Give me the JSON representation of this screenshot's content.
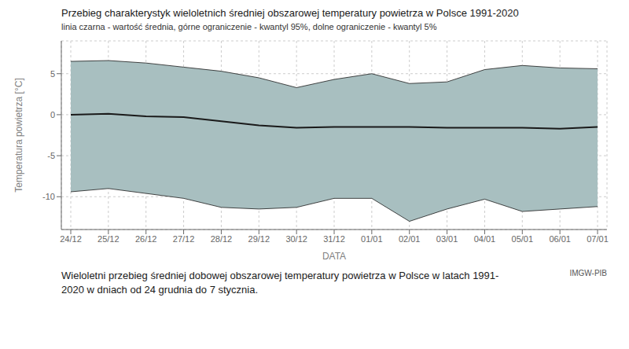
{
  "chart_data": {
    "type": "line",
    "title": "Przebieg charakterystyk wieloletnich średniej obszarowej temperatury powietrza w Polsce 1991-2020",
    "subtitle": "linia czarna - wartość średnia, górne ograniczenie - kwantyl 95%, dolne ograniczenie - kwantyl 5%",
    "xlabel": "DATA",
    "ylabel": "Temperatura powietrza [°C]",
    "caption": [
      "Wieloletni przebieg średniej dobowej obszarowej temperatury powietrza w Polsce w latach 1991-",
      "2020 w dniach od 24 grudnia do 7 stycznia."
    ],
    "watermark": "IMGW-PIB",
    "categories": [
      "24/12",
      "25/12",
      "26/12",
      "27/12",
      "28/12",
      "29/12",
      "30/12",
      "31/12",
      "01/01",
      "02/01",
      "03/01",
      "04/01",
      "05/01",
      "06/01",
      "07/01"
    ],
    "series": [
      {
        "type": "band",
        "color": "#a8bfc0",
        "lower": [
          -9.4,
          -9.0,
          -9.6,
          -10.2,
          -11.3,
          -11.5,
          -11.3,
          -10.2,
          -10.2,
          -13.0,
          -11.5,
          -10.3,
          -11.8,
          -11.5,
          -11.2
        ],
        "upper": [
          6.5,
          6.6,
          6.3,
          5.8,
          5.3,
          4.5,
          3.3,
          4.3,
          5.0,
          3.8,
          4.0,
          5.5,
          6.0,
          5.7,
          5.6
        ]
      },
      {
        "type": "line",
        "color": "#1a1a1a",
        "values": [
          0.0,
          0.1,
          -0.2,
          -0.3,
          -0.8,
          -1.3,
          -1.6,
          -1.5,
          -1.5,
          -1.5,
          -1.6,
          -1.6,
          -1.6,
          -1.7,
          -1.5
        ]
      }
    ],
    "ylim": [
      -14,
      9
    ],
    "yticks": [
      -10,
      -5,
      0,
      5
    ],
    "grid": true
  }
}
